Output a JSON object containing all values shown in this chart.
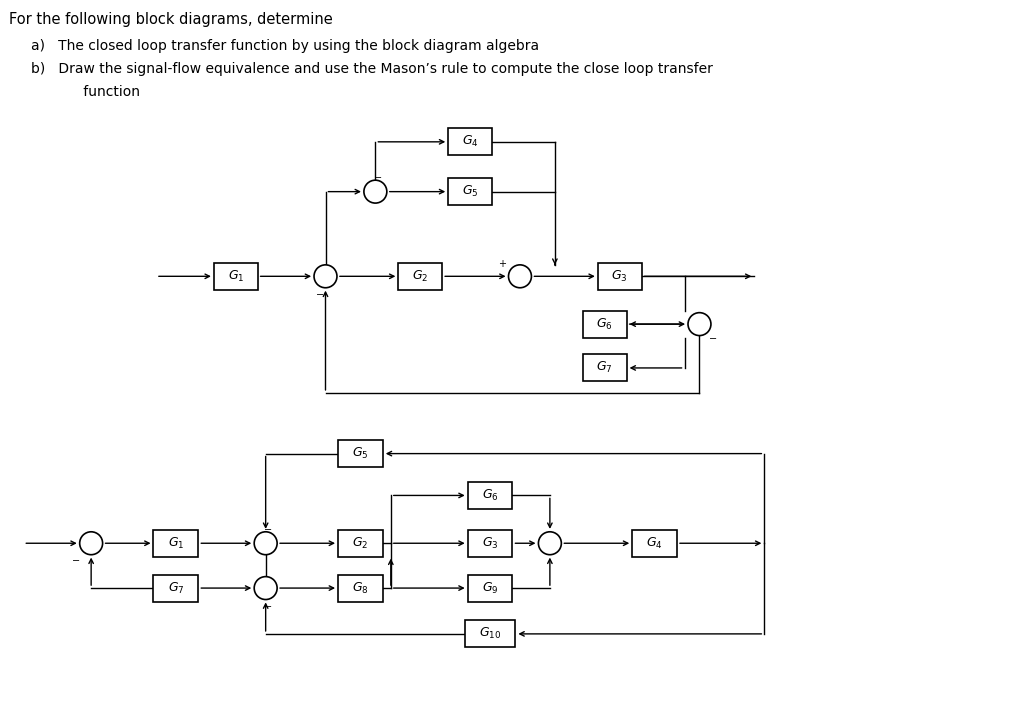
{
  "bg_color": "#ffffff",
  "block_color": "#ffffff",
  "line_color": "#000000",
  "text_color": "#000000",
  "title": "For the following block diagrams, determine",
  "line_a": "a)   The closed loop transfer function by using the block diagram algebra",
  "line_b": "b)   Draw the signal-flow equivalence and use the Mason’s rule to compute the close loop transfer",
  "line_b2": "      function"
}
